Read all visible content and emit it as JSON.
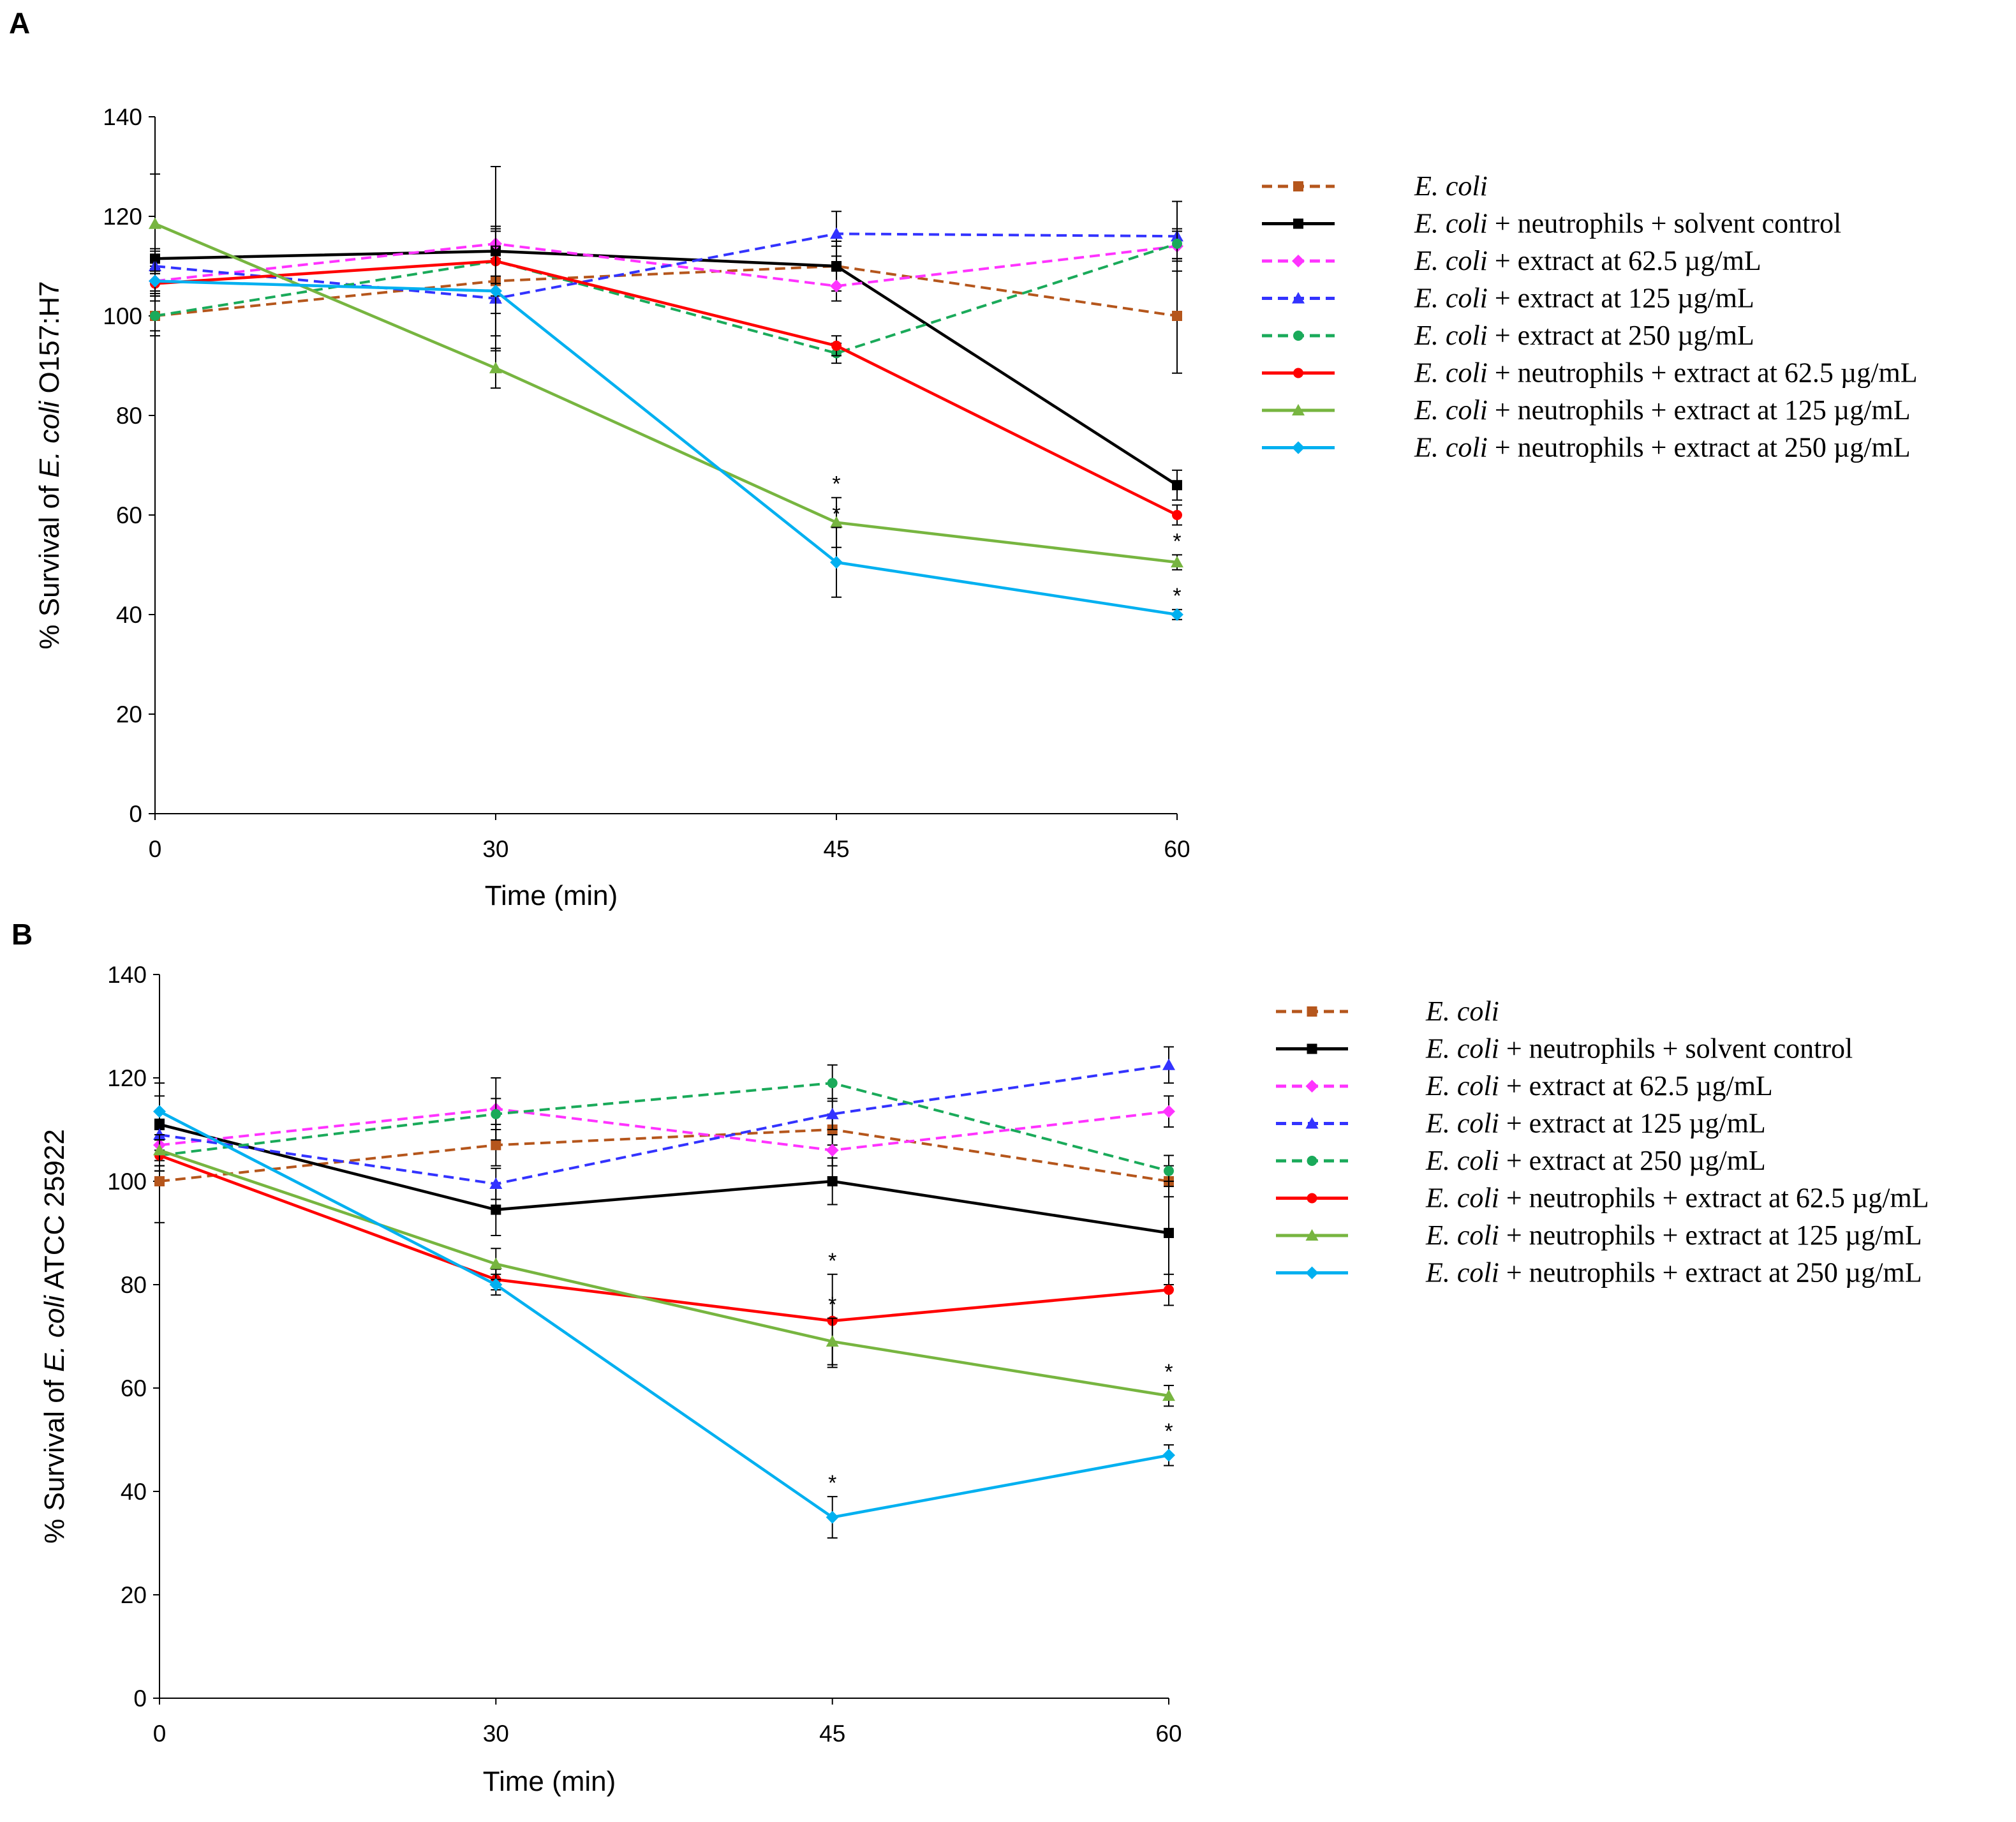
{
  "chart_data": [
    {
      "panel_label": "A",
      "type": "line",
      "title": "",
      "xlabel": "Time (min)",
      "ylabel_prefix": "% Survival of ",
      "ylabel_italic": "E. coli",
      "ylabel_suffix": " O157:H7",
      "categories": [
        "0",
        "30",
        "45",
        "60"
      ],
      "ylim": [
        0,
        140
      ],
      "yticks": [
        "0",
        "20",
        "40",
        "60",
        "80",
        "100",
        "120",
        "140"
      ],
      "grid": false,
      "legend_position": "right",
      "series": [
        {
          "name_italic": "E. coli",
          "name_rest": "",
          "color": "#b5561c",
          "dash": true,
          "marker": "square",
          "values": [
            100,
            107,
            110,
            100
          ],
          "errors": [
            4,
            4,
            4,
            11.5
          ]
        },
        {
          "name_italic": "E. coli",
          "name_rest": " + neutrophils + solvent control",
          "color": "#000000",
          "dash": false,
          "marker": "square",
          "values": [
            111.5,
            113,
            110,
            66
          ],
          "errors": [
            2,
            17,
            5,
            3
          ]
        },
        {
          "name_italic": "E. coli",
          "name_rest": " + extract at 62.5 µg/mL",
          "color": "#ff33ff",
          "dash": true,
          "marker": "diamond",
          "values": [
            107,
            114.5,
            106,
            114
          ],
          "errors": [
            3,
            3,
            3,
            3
          ]
        },
        {
          "name_italic": "E. coli",
          "name_rest": " + extract at  125 µg/mL",
          "color": "#3333ff",
          "dash": true,
          "marker": "triangle",
          "values": [
            110,
            103.5,
            116.5,
            116
          ],
          "errors": [
            3,
            3,
            4.5,
            7
          ]
        },
        {
          "name_italic": "E. coli",
          "name_rest": " + extract at  250 µg/mL",
          "color": "#1aaa5a",
          "dash": true,
          "marker": "circle",
          "values": [
            100,
            111,
            92.5,
            114.5
          ],
          "errors": [
            3,
            7,
            2,
            3
          ]
        },
        {
          "name_italic": "E. coli",
          "name_rest": " + neutrophils + extract at 62.5 µg/mL",
          "color": "#ff0000",
          "dash": false,
          "marker": "circle",
          "values": [
            106.5,
            111,
            94,
            60
          ],
          "errors": [
            2,
            3,
            2,
            2
          ]
        },
        {
          "name_italic": "E. coli",
          "name_rest": " + neutrophils + extract at    125 µg/mL",
          "color": "#77b540",
          "dash": false,
          "marker": "triangle",
          "values": [
            118.5,
            89.5,
            58.5,
            50.5
          ],
          "errors": [
            10,
            4,
            5,
            1.5
          ]
        },
        {
          "name_italic": "E. coli",
          "name_rest": " + neutrophils + extract at    250 µg/mL",
          "color": "#00b0f0",
          "dash": false,
          "marker": "diamond",
          "values": [
            107,
            105,
            50.5,
            40
          ],
          "errors": [
            2,
            12,
            7,
            1
          ]
        }
      ],
      "significance_marks": [
        {
          "series_index": 6,
          "category": "45",
          "label": "*"
        },
        {
          "series_index": 7,
          "category": "45",
          "label": "*"
        },
        {
          "series_index": 6,
          "category": "60",
          "label": "*"
        },
        {
          "series_index": 7,
          "category": "60",
          "label": "*"
        }
      ]
    },
    {
      "panel_label": "B",
      "type": "line",
      "title": "",
      "xlabel": "Time (min)",
      "ylabel_prefix": "% Survival of ",
      "ylabel_italic": "E. coli",
      "ylabel_suffix": " ATCC 25922",
      "categories": [
        "0",
        "30",
        "45",
        "60"
      ],
      "ylim": [
        0,
        140
      ],
      "yticks": [
        "0",
        "20",
        "40",
        "60",
        "80",
        "100",
        "120",
        "140"
      ],
      "grid": false,
      "legend_position": "right",
      "series": [
        {
          "name_italic": "E. coli",
          "name_rest": "",
          "color": "#b5561c",
          "dash": true,
          "marker": "square",
          "values": [
            100,
            107,
            110,
            100
          ],
          "errors": [
            8,
            4,
            3,
            3
          ]
        },
        {
          "name_italic": "E. coli",
          "name_rest": " + neutrophils + solvent control",
          "color": "#000000",
          "dash": false,
          "marker": "square",
          "values": [
            111,
            94.5,
            100,
            90
          ],
          "errors": [
            8,
            5,
            4.5,
            10
          ]
        },
        {
          "name_italic": "E. coli",
          "name_rest": " + extract at 62.5 µg/mL",
          "color": "#ff33ff",
          "dash": true,
          "marker": "diamond",
          "values": [
            107,
            114,
            106,
            113.5
          ],
          "errors": [
            3,
            6,
            3,
            3
          ]
        },
        {
          "name_italic": "E. coli",
          "name_rest": " + extract at  125 µg/mL",
          "color": "#3333ff",
          "dash": true,
          "marker": "triangle",
          "values": [
            109,
            99.5,
            113,
            122.5
          ],
          "errors": [
            3,
            3,
            3,
            3.5
          ]
        },
        {
          "name_italic": "E. coli",
          "name_rest": " + extract at  250 µg/mL",
          "color": "#1aaa5a",
          "dash": true,
          "marker": "circle",
          "values": [
            105,
            113,
            119,
            102
          ],
          "errors": [
            3,
            3,
            3.5,
            3
          ]
        },
        {
          "name_italic": "E. coli",
          "name_rest": " + neutrophils + extract at 62.5 µg/mL",
          "color": "#ff0000",
          "dash": false,
          "marker": "circle",
          "values": [
            105,
            81,
            73,
            79
          ],
          "errors": [
            3,
            2,
            9,
            3
          ]
        },
        {
          "name_italic": "E. coli",
          "name_rest": " + neutrophils + extract at    125 µg/mL",
          "color": "#77b540",
          "dash": false,
          "marker": "triangle",
          "values": [
            106,
            84,
            69,
            58.5
          ],
          "errors": [
            3,
            3,
            4.5,
            2
          ]
        },
        {
          "name_italic": "E. coli",
          "name_rest": " + neutrophils + extract at    250 µg/mL",
          "color": "#00b0f0",
          "dash": false,
          "marker": "diamond",
          "values": [
            113.5,
            80,
            35,
            47
          ],
          "errors": [
            3,
            2,
            4,
            2
          ]
        }
      ],
      "significance_marks": [
        {
          "series_index": 5,
          "category": "45",
          "label": "*"
        },
        {
          "series_index": 6,
          "category": "45",
          "label": "*"
        },
        {
          "series_index": 7,
          "category": "45",
          "label": "*"
        },
        {
          "series_index": 6,
          "category": "60",
          "label": "*"
        },
        {
          "series_index": 7,
          "category": "60",
          "label": "*"
        }
      ]
    }
  ]
}
